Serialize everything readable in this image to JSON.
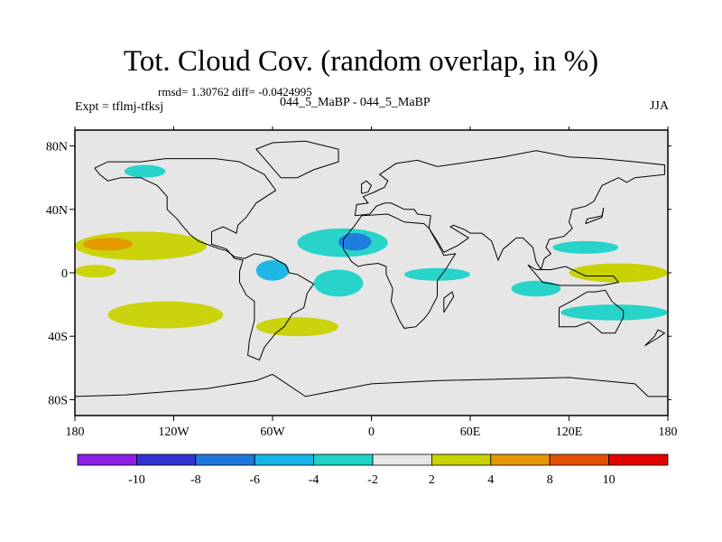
{
  "chart_data": {
    "type": "heatmap",
    "title": "Tot. Cloud Cov. (random overlap, in %)",
    "stats_text": "rmsd= 1.30762 diff= -0.0424995",
    "experiment_label": "Expt = tflmj-tfksj",
    "runs_label": "044_5_MaBP - 044_5_MaBP",
    "season": "JJA",
    "x_range": [
      -180,
      180
    ],
    "y_range": [
      -90,
      90
    ],
    "x_ticks": [
      {
        "value": -180,
        "label": "180"
      },
      {
        "value": -120,
        "label": "120W"
      },
      {
        "value": -60,
        "label": "60W"
      },
      {
        "value": 0,
        "label": "0"
      },
      {
        "value": 60,
        "label": "60E"
      },
      {
        "value": 120,
        "label": "120E"
      },
      {
        "value": 180,
        "label": "180"
      }
    ],
    "y_ticks": [
      {
        "value": 80,
        "label": "80N"
      },
      {
        "value": 40,
        "label": "40N"
      },
      {
        "value": 0,
        "label": "0"
      },
      {
        "value": -40,
        "label": "40S"
      },
      {
        "value": -80,
        "label": "80S"
      }
    ],
    "colorbar": {
      "labels": [
        "-10",
        "-8",
        "-6",
        "-4",
        "-2",
        "2",
        "4",
        "8",
        "10"
      ],
      "colors": [
        "#8c1ee6",
        "#3232d2",
        "#1e78dc",
        "#14b4e6",
        "#1ed2c8",
        "#e6e6e6",
        "#c8d200",
        "#e69600",
        "#e65000",
        "#e60000"
      ]
    },
    "anomaly_regions": [
      {
        "name": "N Pacific tropics",
        "lon": [
          -180,
          -100
        ],
        "lat": [
          8,
          26
        ],
        "class": "4 to 8"
      },
      {
        "name": "N Pacific tropics core",
        "lon": [
          -175,
          -145
        ],
        "lat": [
          14,
          22
        ],
        "class": "4 to 8 core"
      },
      {
        "name": "E Pacific band",
        "lon": [
          -180,
          -155
        ],
        "lat": [
          -3,
          5
        ],
        "class": "2 to 4"
      },
      {
        "name": "S Pacific",
        "lon": [
          -160,
          -90
        ],
        "lat": [
          -35,
          -18
        ],
        "class": "2 to 4"
      },
      {
        "name": "S America subtropics",
        "lon": [
          -70,
          -20
        ],
        "lat": [
          -40,
          -28
        ],
        "class": "2 to 4"
      },
      {
        "name": "Sahel / N Africa",
        "lon": [
          -45,
          10
        ],
        "lat": [
          10,
          28
        ],
        "class": "-4 to -2"
      },
      {
        "name": "W Africa core",
        "lon": [
          -20,
          0
        ],
        "lat": [
          14,
          25
        ],
        "class": "-8 to -6"
      },
      {
        "name": "N Atlantic",
        "lon": [
          -150,
          -125
        ],
        "lat": [
          60,
          68
        ],
        "class": "-4 to -2"
      },
      {
        "name": "Amazon",
        "lon": [
          -70,
          -50
        ],
        "lat": [
          -5,
          8
        ],
        "class": "-6 to -4"
      },
      {
        "name": "Gulf of Guinea",
        "lon": [
          -35,
          -5
        ],
        "lat": [
          -15,
          2
        ],
        "class": "-4 to -2"
      },
      {
        "name": "Arabia / Indian Ocean",
        "lon": [
          20,
          60
        ],
        "lat": [
          -5,
          3
        ],
        "class": "-4 to -2"
      },
      {
        "name": "Indian Ocean S",
        "lon": [
          85,
          115
        ],
        "lat": [
          -15,
          -5
        ],
        "class": "-4 to -2"
      },
      {
        "name": "SE Asia",
        "lon": [
          110,
          150
        ],
        "lat": [
          12,
          20
        ],
        "class": "-4 to -2"
      },
      {
        "name": "W Pacific warm pool",
        "lon": [
          125,
          180
        ],
        "lat": [
          -5,
          5
        ],
        "class": "4 to 8"
      },
      {
        "name": "W Pacific band",
        "lon": [
          120,
          180
        ],
        "lat": [
          -6,
          6
        ],
        "class": "2 to 4"
      },
      {
        "name": "S Indian",
        "lon": [
          115,
          180
        ],
        "lat": [
          -30,
          -20
        ],
        "class": "-4 to -2"
      }
    ]
  }
}
